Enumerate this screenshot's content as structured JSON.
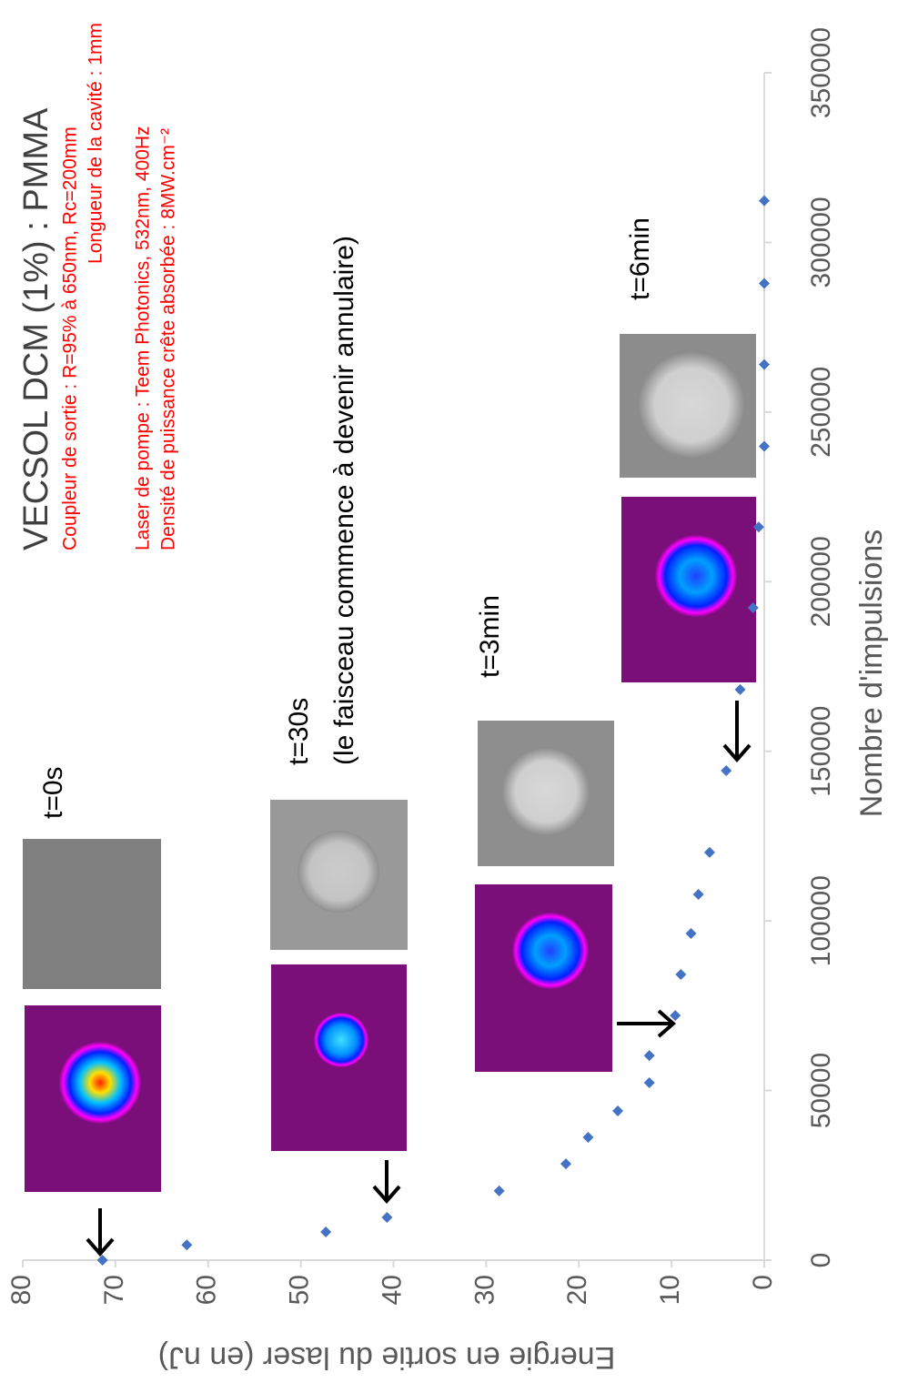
{
  "chart_data": {
    "type": "scatter",
    "title": "VECSOL DCM (1%) : PMMA",
    "notes": [
      "Coupleur de sortie : R=95% à 650nm, Rc=200mm",
      "Longueur de la cavité : 1mm",
      "Laser de pompe : Teem Photonics, 532nm, 400Hz",
      "Densité de puissance crête absorbée : 8MW.cm⁻²"
    ],
    "notes_color": "#ff0000",
    "annotations": [
      "t=0s",
      "t=30s",
      "(le faisceau commence à devenir annulaire)",
      "t=3min",
      "t=6min"
    ],
    "x_label": "Nombre d'impulsions",
    "y_label": "Energie en sortie du laser (en nJ)",
    "x": [
      0,
      4500,
      8300,
      12600,
      20400,
      28400,
      36200,
      44000,
      52300,
      60300,
      72100,
      84200,
      96300,
      107800,
      120200,
      144300,
      168200,
      192300,
      216100,
      239900,
      264000,
      287900,
      312300
    ],
    "values": [
      71.4,
      62.3,
      47.3,
      40.7,
      28.6,
      21.4,
      19.0,
      15.8,
      12.4,
      12.4,
      9.6,
      9.0,
      7.9,
      7.1,
      5.9,
      4.1,
      2.6,
      1.2,
      0.6,
      0,
      0,
      0,
      0
    ],
    "color": "#4472c4",
    "xlim": [
      0,
      350000
    ],
    "xticks": [
      0,
      50000,
      100000,
      150000,
      200000,
      250000,
      300000,
      350000
    ],
    "ylim": [
      0,
      80
    ],
    "yticks": [
      0,
      10,
      20,
      30,
      40,
      50,
      60,
      70,
      80
    ],
    "rotation": -90
  }
}
